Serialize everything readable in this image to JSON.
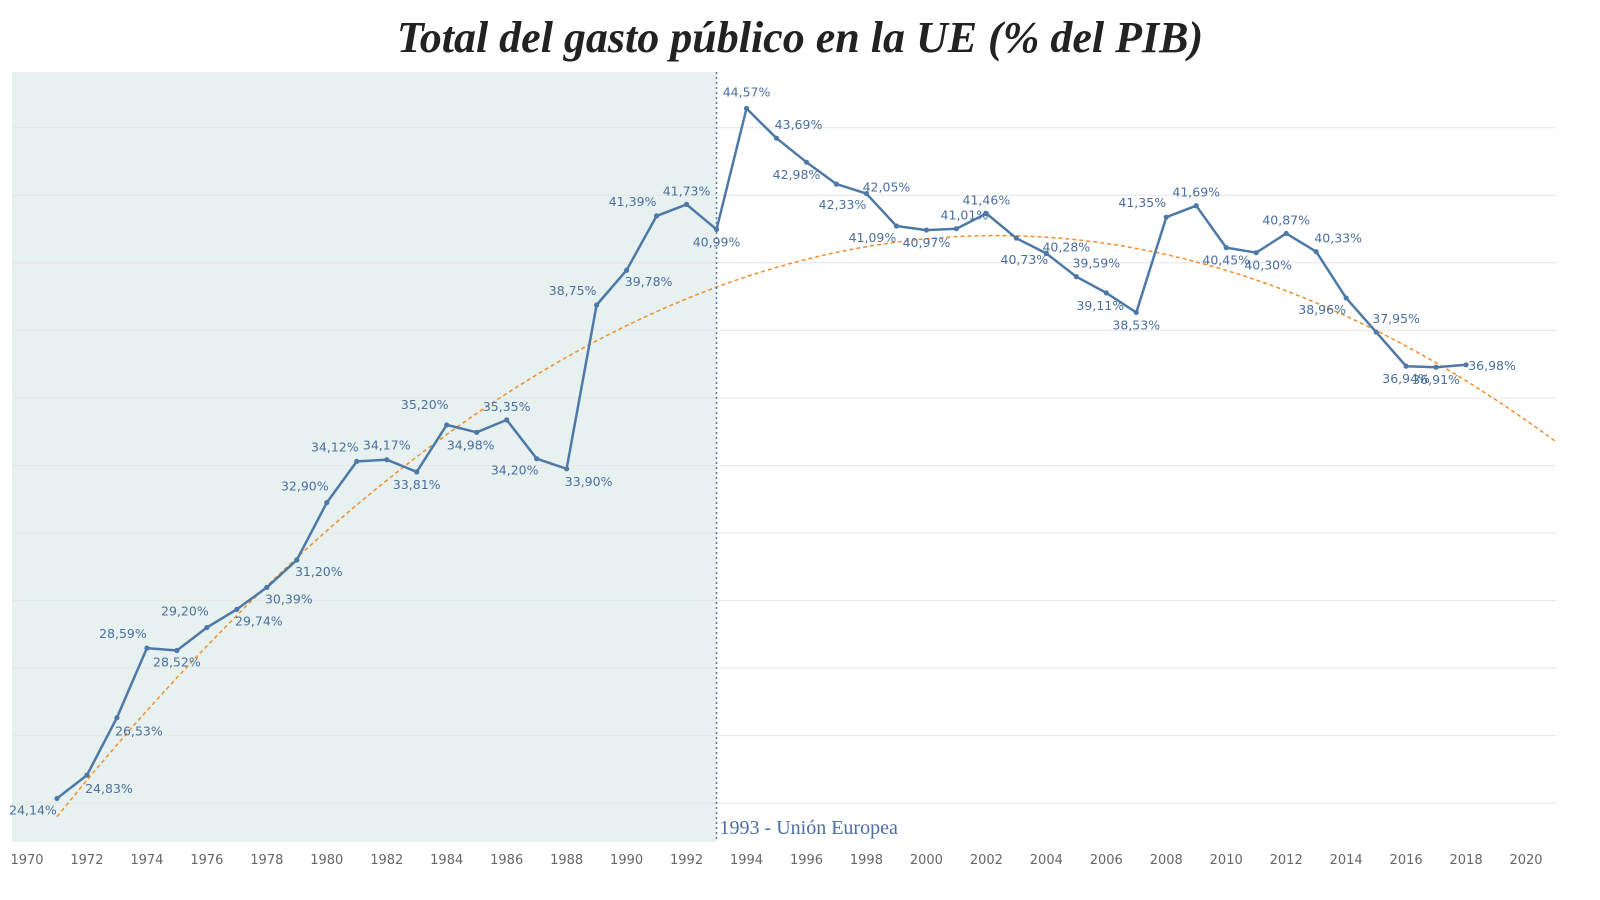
{
  "title": "Total del gasto público en la UE (% del PIB)",
  "chart_data": {
    "type": "line",
    "title": "Total del gasto público en la UE (% del PIB)",
    "xlabel": "",
    "ylabel": "",
    "x_ticks": [
      "1970",
      "1972",
      "1974",
      "1976",
      "1978",
      "1980",
      "1982",
      "1984",
      "1986",
      "1988",
      "1990",
      "1992",
      "1994",
      "1996",
      "1998",
      "2000",
      "2002",
      "2004",
      "2006",
      "2008",
      "2010",
      "2012",
      "2014",
      "2016",
      "2018",
      "2020"
    ],
    "xlim": [
      1969.5,
      2021.0
    ],
    "ylim": [
      22.85,
      45.65
    ],
    "y_grid_values": [
      24,
      26,
      28,
      30,
      32,
      34,
      36,
      38,
      40,
      42,
      44
    ],
    "grid": true,
    "series": [
      {
        "x": [
          1971,
          1972,
          1973,
          1974,
          1975,
          1976,
          1977,
          1978,
          1979,
          1980,
          1981,
          1982,
          1983,
          1984,
          1985,
          1986,
          1987,
          1988,
          1989,
          1990,
          1991,
          1992,
          1993,
          1994,
          1995,
          1996,
          1997,
          1998,
          1999,
          2000,
          2001,
          2002,
          2003,
          2004,
          2005,
          2006,
          2007,
          2008,
          2009,
          2010,
          2011,
          2012,
          2013,
          2014,
          2015,
          2016,
          2017,
          2018
        ],
        "values": [
          24.14,
          24.83,
          26.53,
          28.59,
          28.52,
          29.2,
          29.74,
          30.39,
          31.2,
          32.9,
          34.12,
          34.17,
          33.81,
          35.2,
          34.98,
          35.35,
          34.2,
          33.9,
          38.75,
          39.78,
          41.39,
          41.73,
          40.99,
          44.57,
          43.69,
          42.98,
          42.33,
          42.05,
          41.09,
          40.97,
          41.01,
          41.46,
          40.73,
          40.28,
          39.59,
          39.11,
          38.53,
          41.35,
          41.69,
          40.45,
          40.3,
          40.87,
          40.33,
          38.96,
          37.95,
          36.94,
          36.91,
          36.98
        ],
        "labels": [
          "24,14%",
          "24,83%",
          "",
          "28,59%",
          "28,52%",
          "29,20%",
          "29,74%",
          "30,39%",
          "31,20%",
          "32,90%",
          "34,12%",
          "34,17%",
          "33,81%",
          "35,20%",
          "34,98%",
          "35,35%",
          "34,20%",
          "33,90%",
          "38,75%",
          "39,78%",
          "41,39%",
          "41,73%",
          "40,99%",
          "44,57%",
          "43,69%",
          "42,98%",
          "42,33%",
          "42,05%",
          "41,09%",
          "40,97%",
          "41,01%",
          "41,46%",
          "40,73%",
          "40,28%",
          "39,59%",
          "39,11%",
          "38,53%",
          "41,35%",
          "41,69%",
          "40,45%",
          "40,30%",
          "40,87%",
          "40,33%",
          "38,96%",
          "37,95%",
          "36,94%",
          "36,91%",
          "36,98%"
        ],
        "extra_label": "26,53%",
        "color": "#4e79a7"
      }
    ],
    "trend": {
      "type": "quadratic",
      "style": "dashed",
      "color": "#f28e2b",
      "x": [
        1971,
        1993,
        2021
      ],
      "y": [
        23.6,
        39.28,
        34.7
      ]
    },
    "shaded_region": {
      "x_from": 1969.5,
      "x_to": 1993.0,
      "color": "#e7f1ef"
    },
    "annotation": {
      "x": 1993.0,
      "text": "1993 - Unión Europea",
      "line_style": "dotted",
      "color": "#4e79a7"
    }
  }
}
